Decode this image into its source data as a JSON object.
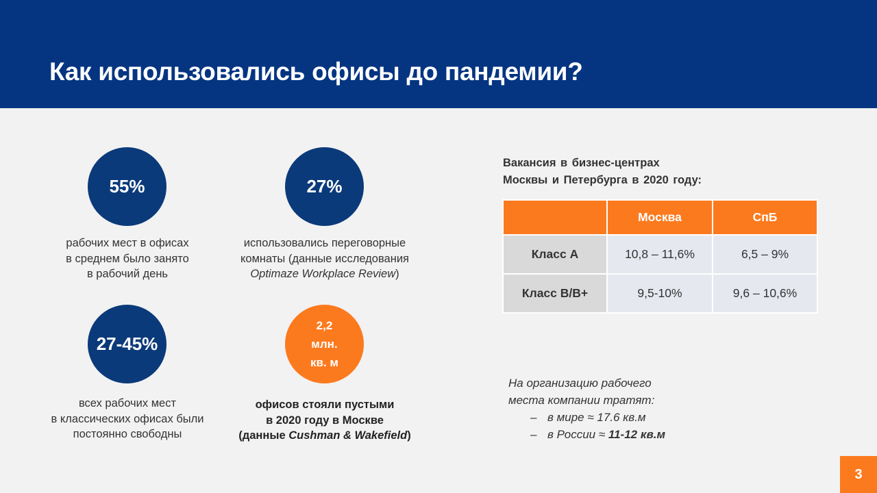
{
  "title": "Как использовались офисы до пандемии?",
  "stats": [
    {
      "value": "55%",
      "caption": [
        "рабочих мест в офисах",
        "в среднем было занято",
        "в рабочий день"
      ]
    },
    {
      "value": "27%",
      "caption": [
        "использовались переговорные",
        "комнаты (данные исследования"
      ],
      "caption_italic": "Optimaze Workplace Review",
      "caption_tail": ")"
    },
    {
      "value": "27-45%",
      "caption": [
        "всех рабочих мест",
        "в классических офисах были",
        "постоянно свободны"
      ]
    },
    {
      "value_lines": [
        "2,2",
        "млн.",
        "кв. м"
      ],
      "caption": [
        "офисов стояли пустыми",
        "в 2020 году в Москве"
      ],
      "caption_prefix": "(данные ",
      "caption_italic": "Cushman & Wakefield",
      "caption_tail": ")"
    }
  ],
  "vacancy": {
    "title_lines": [
      "Вакансия в бизнес-центрах",
      "Москвы и Петербурга в 2020 году:"
    ],
    "columns": [
      "",
      "Москва",
      "СпБ"
    ],
    "rows": [
      {
        "label": "Класс А",
        "values": [
          "10,8 – 11,6%",
          "6,5 – 9%"
        ]
      },
      {
        "label": "Класс B/B+",
        "values": [
          "9,5-10%",
          "9,6 – 10,6%"
        ]
      }
    ]
  },
  "note": {
    "lines": [
      "На организацию рабочего",
      "места компании тратят:"
    ],
    "bullets": [
      {
        "dash": "–",
        "text": "в мире ≈ 17.6 кв.м"
      },
      {
        "dash": "–",
        "text_prefix": "в России ≈ ",
        "text_bold": "11-12 кв.м"
      }
    ]
  },
  "page_number": "3",
  "colors": {
    "header": "#053581",
    "circle_blue": "#0b3a7a",
    "accent_orange": "#fc7a1e",
    "background": "#f2f2f2"
  }
}
